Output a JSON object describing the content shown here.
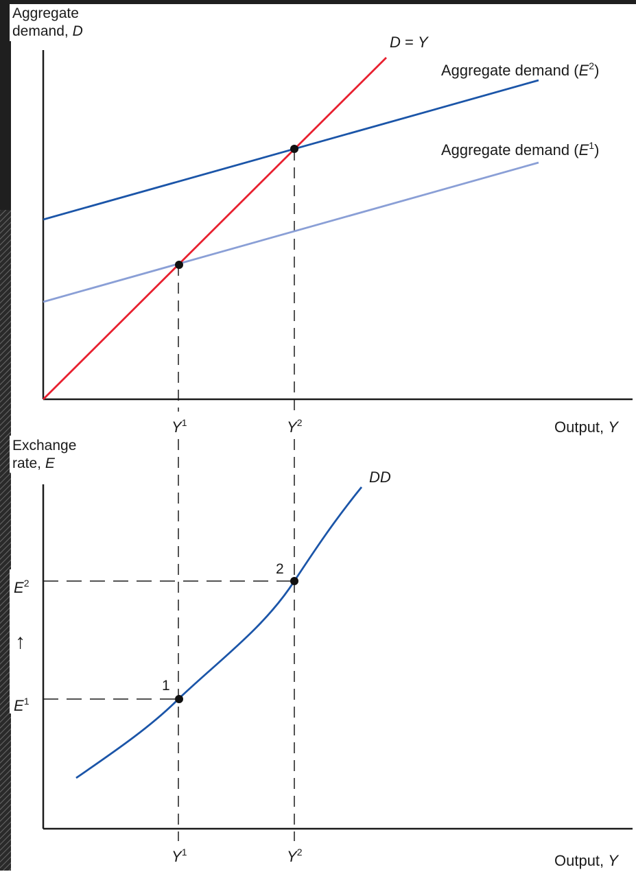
{
  "top_panel": {
    "y_axis_label_line1": "Aggregate",
    "y_axis_label_line2_text": "demand, ",
    "y_axis_label_line2_var": "D",
    "x_axis_label_text": "Output, ",
    "x_axis_label_var": "Y",
    "lines": {
      "dy_var1": "D",
      "dy_eq": " = ",
      "dy_var2": "Y",
      "ad2_text": "Aggregate demand (",
      "ad2_var": "E",
      "ad2_sup": "2",
      "ad2_close": ")",
      "ad1_text": "Aggregate demand (",
      "ad1_var": "E",
      "ad1_sup": "1",
      "ad1_close": ")"
    },
    "ticks": {
      "y1_var": "Y",
      "y1_sup": "1",
      "y2_var": "Y",
      "y2_sup": "2"
    }
  },
  "bottom_panel": {
    "y_axis_label_line1": "Exchange",
    "y_axis_label_line2_text": "rate, ",
    "y_axis_label_line2_var": "E",
    "x_axis_label_text": "Output, ",
    "x_axis_label_var": "Y",
    "curve_label": "DD",
    "arrow_glyph": "↑",
    "ticks": {
      "e2_var": "E",
      "e2_sup": "2",
      "e1_var": "E",
      "e1_sup": "1",
      "y1_var": "Y",
      "y1_sup": "1",
      "y2_var": "Y",
      "y2_sup": "2"
    },
    "points": {
      "p1": "1",
      "p2": "2"
    }
  },
  "colors": {
    "dy_line": "#e8202f",
    "ad2_line": "#1b55a8",
    "ad1_line": "#8a9fd6",
    "dd_curve": "#1b55a8",
    "axis": "#1a1a1a",
    "dark_strip": "#1f1f1f"
  }
}
